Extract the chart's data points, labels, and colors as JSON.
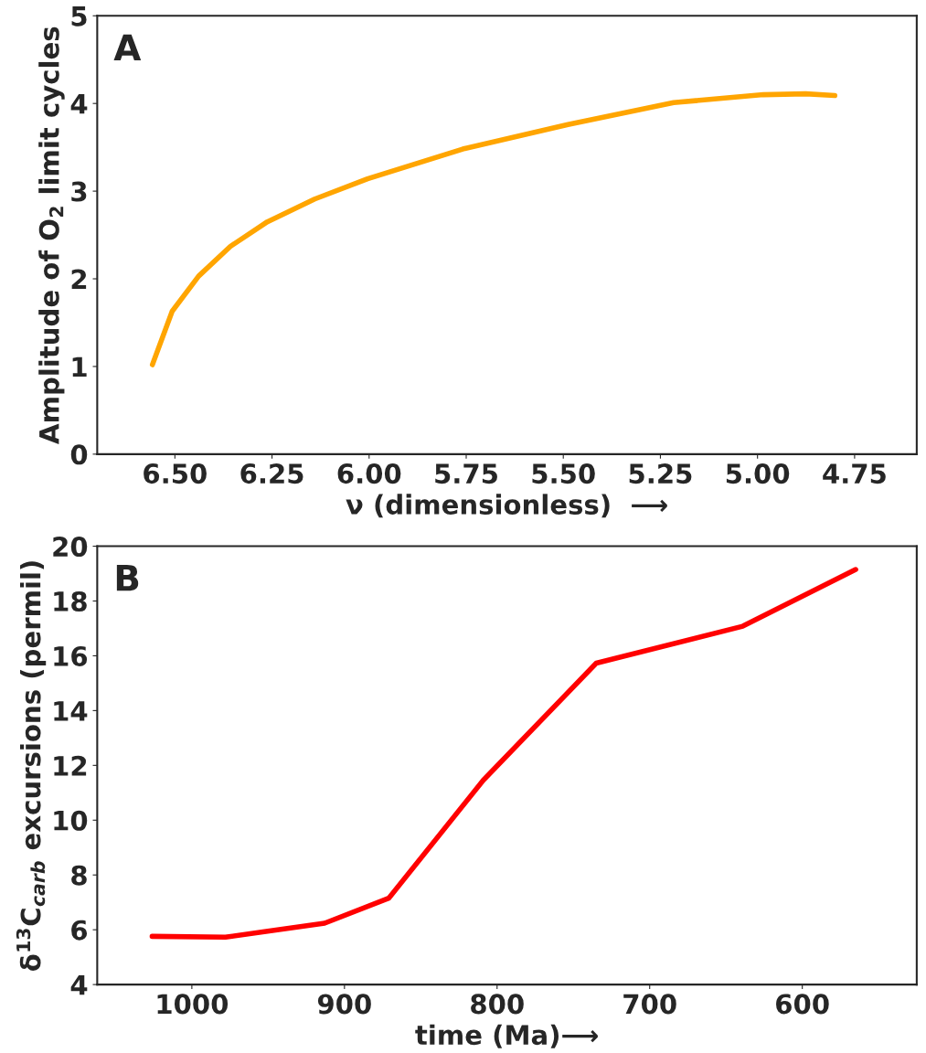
{
  "chart_data": [
    {
      "type": "line",
      "xlabel": "ν (dimensionless)  ⟶",
      "ylabel": "Amplitude of O$_{2}$ limit cycles",
      "annotations": [
        "A"
      ],
      "x": [
        6.558,
        6.507,
        6.439,
        6.357,
        6.262,
        6.14,
        6.004,
        5.759,
        5.488,
        5.216,
        4.985,
        4.876,
        4.801
      ],
      "series": [
        {
          "color": "#ffa500",
          "values": [
            1.02,
            1.63,
            2.03,
            2.37,
            2.65,
            2.91,
            3.14,
            3.48,
            3.76,
            4.01,
            4.1,
            4.11,
            4.09
          ]
        }
      ],
      "xlim": [
        6.7,
        4.59
      ],
      "ylim": [
        0,
        5
      ],
      "xticks": [
        {
          "value": 6.5,
          "label": "6.50"
        },
        {
          "value": 6.25,
          "label": "6.25"
        },
        {
          "value": 6.0,
          "label": "6.00"
        },
        {
          "value": 5.75,
          "label": "5.75"
        },
        {
          "value": 5.5,
          "label": "5.50"
        },
        {
          "value": 5.25,
          "label": "5.25"
        },
        {
          "value": 5.0,
          "label": "5.00"
        },
        {
          "value": 4.75,
          "label": "4.75"
        }
      ],
      "yticks": [
        0,
        1,
        2,
        3,
        4,
        5
      ],
      "grid": false,
      "legend": false,
      "marker": "none",
      "line_style": "solid"
    },
    {
      "type": "line",
      "xlabel": "time (Ma)⟶",
      "ylabel": "δ$^{13}$C$_{carb}$ excursions (permil)",
      "annotations": [
        "B"
      ],
      "x": [
        1026,
        978,
        913,
        871,
        809,
        735,
        639,
        565
      ],
      "series": [
        {
          "color": "#ff0000",
          "values": [
            5.76,
            5.73,
            6.24,
            7.15,
            11.46,
            15.73,
            17.08,
            19.15
          ]
        }
      ],
      "xlim": [
        1062,
        525
      ],
      "ylim": [
        4,
        20
      ],
      "xticks": [
        1000,
        900,
        800,
        700,
        600
      ],
      "yticks": [
        4,
        6,
        8,
        10,
        12,
        14,
        16,
        18,
        20
      ],
      "grid": false,
      "legend": false,
      "marker": "none",
      "line_style": "solid"
    }
  ]
}
